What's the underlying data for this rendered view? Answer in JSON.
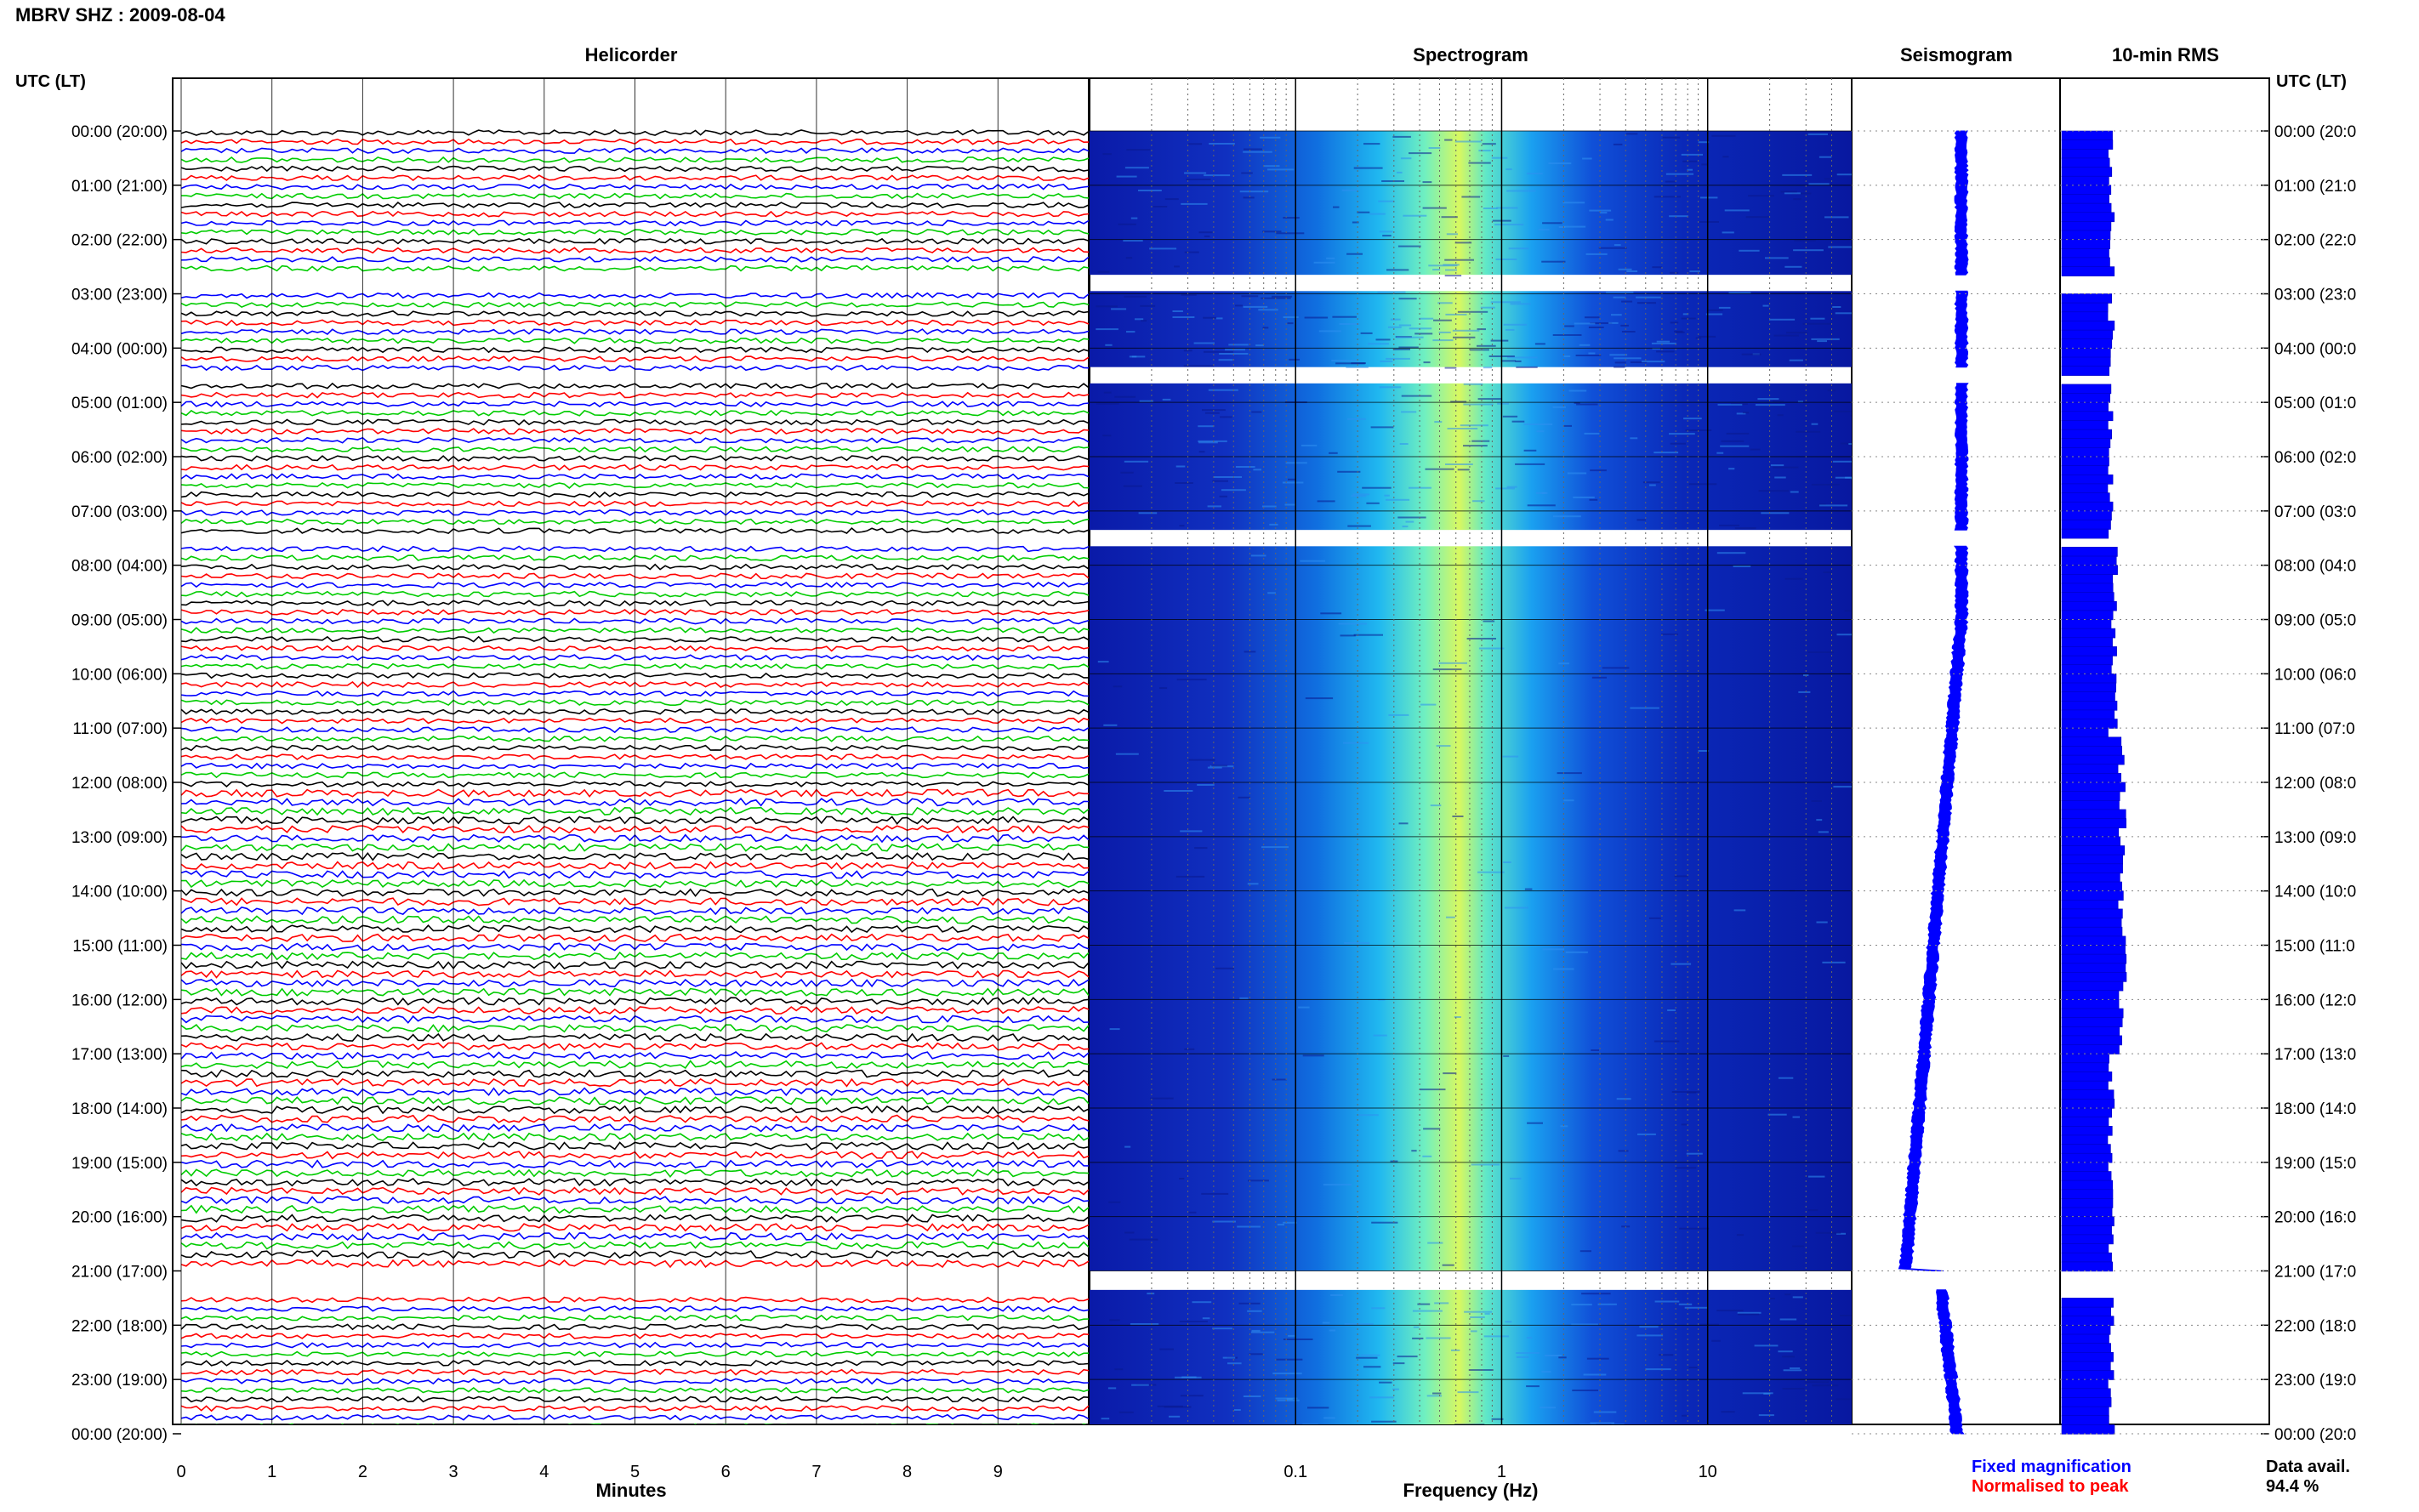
{
  "title": "MBRV SHZ : 2009-08-04",
  "colors": {
    "trace_cycle": [
      "#000000",
      "#ff0000",
      "#0000ff",
      "#00cc00"
    ],
    "spectrogram_low": "#0000a0",
    "spectrogram_mid": "#00b4ff",
    "spectrogram_high": "#ffff40",
    "fixed_magnification": "#0000ff",
    "normalised_to_peak": "#ff0000"
  },
  "chart_data": [
    {
      "type": "line",
      "title": "Helicorder",
      "xlabel": "Minutes",
      "x_ticks": [
        "0",
        "1",
        "2",
        "3",
        "4",
        "5",
        "6",
        "7",
        "8",
        "9"
      ],
      "xlim": [
        0,
        10
      ],
      "y_axis_label": "UTC (LT)",
      "y_ticks": [
        "00:00 (20:00)",
        "01:00 (21:00)",
        "02:00 (22:00)",
        "03:00 (23:00)",
        "04:00 (00:00)",
        "05:00 (01:00)",
        "06:00 (02:00)",
        "07:00 (03:00)",
        "08:00 (04:00)",
        "09:00 (05:00)",
        "10:00 (06:00)",
        "11:00 (07:00)",
        "12:00 (08:00)",
        "13:00 (09:00)",
        "14:00 (10:00)",
        "15:00 (11:00)",
        "16:00 (12:00)",
        "17:00 (13:00)",
        "18:00 (14:00)",
        "19:00 (15:00)",
        "20:00 (16:00)",
        "21:00 (17:00)",
        "22:00 (18:00)",
        "23:00 (19:00)",
        "00:00 (20:00)"
      ],
      "ylim_hours": [
        0,
        24
      ],
      "traces_per_hour": 6,
      "data_gaps_hours": [
        [
          2.65,
          2.95
        ],
        [
          4.35,
          4.65
        ],
        [
          7.35,
          7.65
        ],
        [
          21.0,
          21.35
        ]
      ]
    },
    {
      "type": "heatmap",
      "title": "Spectrogram",
      "xlabel": "Frequency (Hz)",
      "x_scale": "log",
      "x_ticks": [
        "0.1",
        "1",
        "10"
      ],
      "xlim": [
        0.01,
        50
      ],
      "ylim_hours": [
        0,
        24
      ],
      "peak_frequency_hz": 0.9
    },
    {
      "type": "line",
      "title": "Seismogram"
    },
    {
      "type": "bar",
      "title": "10-min RMS"
    }
  ],
  "right_axis": {
    "label": "UTC (LT)",
    "ticks": [
      "00:00 (20:0",
      "01:00 (21:0",
      "02:00 (22:0",
      "03:00 (23:0",
      "04:00 (00:0",
      "05:00 (01:0",
      "06:00 (02:0",
      "07:00 (03:0",
      "08:00 (04:0",
      "09:00 (05:0",
      "10:00 (06:0",
      "11:00 (07:0",
      "12:00 (08:0",
      "13:00 (09:0",
      "14:00 (10:0",
      "15:00 (11:0",
      "16:00 (12:0",
      "17:00 (13:0",
      "18:00 (14:0",
      "19:00 (15:0",
      "20:00 (16:0",
      "21:00 (17:0",
      "22:00 (18:0",
      "23:00 (19:0",
      "00:00 (20:0"
    ]
  },
  "legend": {
    "fixed_magnification": "Fixed magnification",
    "normalised_to_peak": "Normalised to peak"
  },
  "data_availability": {
    "label": "Data avail.",
    "value": "94.4 %"
  }
}
